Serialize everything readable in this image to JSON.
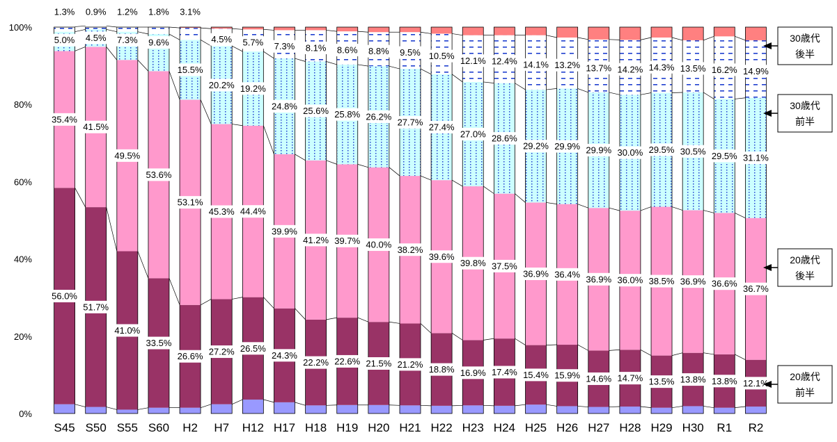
{
  "chart_data": {
    "type": "bar",
    "stacked": true,
    "percent": true,
    "categories": [
      "S45",
      "S50",
      "S55",
      "S60",
      "H2",
      "H7",
      "H12",
      "H17",
      "H18",
      "H19",
      "H20",
      "H21",
      "H22",
      "H23",
      "H24",
      "H25",
      "H26",
      "H27",
      "H28",
      "H29",
      "H30",
      "R1",
      "R2"
    ],
    "y_ticks": [
      "0%",
      "20%",
      "40%",
      "60%",
      "80%",
      "100%"
    ],
    "ylim": [
      0,
      100
    ],
    "grid": false,
    "colors": {
      "lowest": "#9999ff",
      "early20s": "#993366",
      "late20s": "#ff99cc",
      "early30s": "#ccffff",
      "late30s": "#ffffff",
      "top": "#ff8080",
      "dots": "#1f3fcf"
    },
    "series": [
      {
        "key": "lowest",
        "values": [
          2.4,
          1.7,
          1.0,
          1.5,
          1.5,
          2.4,
          3.6,
          2.9,
          2.1,
          2.2,
          2.2,
          2.1,
          2.0,
          2.1,
          2.0,
          2.3,
          1.9,
          1.7,
          1.8,
          1.5,
          1.9,
          1.5,
          1.8
        ]
      },
      {
        "key": "early20s",
        "name": "20歳代 前半",
        "values": [
          56.0,
          51.7,
          41.0,
          33.5,
          26.6,
          27.2,
          26.5,
          24.3,
          22.2,
          22.6,
          21.5,
          21.2,
          18.8,
          16.9,
          17.4,
          15.4,
          15.9,
          14.6,
          14.7,
          13.5,
          13.8,
          13.8,
          12.1
        ]
      },
      {
        "key": "late20s",
        "name": "20歳代 後半",
        "values": [
          35.4,
          41.5,
          49.5,
          53.6,
          53.1,
          45.3,
          44.4,
          39.9,
          41.2,
          39.7,
          40.0,
          38.2,
          39.6,
          39.8,
          37.5,
          36.9,
          36.4,
          36.9,
          36.0,
          38.5,
          36.9,
          36.6,
          36.7
        ]
      },
      {
        "key": "early30s",
        "name": "30歳代 前半",
        "values": [
          5.0,
          4.5,
          7.3,
          9.6,
          15.5,
          20.2,
          19.2,
          24.8,
          25.6,
          25.8,
          26.2,
          27.7,
          27.4,
          27.0,
          28.6,
          29.2,
          29.9,
          29.9,
          30.0,
          29.5,
          30.5,
          29.5,
          31.1
        ]
      },
      {
        "key": "late30s",
        "name": "30歳代 後半",
        "values": [
          1.3,
          0.9,
          1.2,
          1.8,
          3.1,
          4.5,
          5.7,
          7.3,
          8.1,
          8.6,
          8.8,
          9.5,
          10.5,
          12.1,
          12.4,
          14.1,
          13.2,
          13.7,
          14.2,
          14.3,
          13.5,
          16.2,
          14.9
        ]
      }
    ],
    "legend": [
      {
        "line1": "30歳代",
        "line2": "後半"
      },
      {
        "line1": "30歳代",
        "line2": "前半"
      },
      {
        "line1": "20歳代",
        "line2": "後半"
      },
      {
        "line1": "20歳代",
        "line2": "前半"
      }
    ]
  }
}
